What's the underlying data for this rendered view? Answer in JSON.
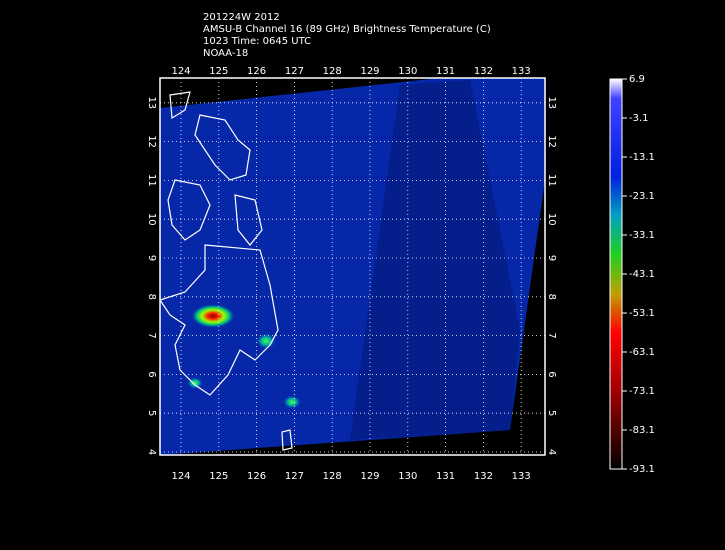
{
  "header": {
    "lines": [
      "201224W 2012",
      "AMSU-B Channel 16 (89 GHz) Brightness Temperature (C)",
      "1023 Time: 0645 UTC",
      "NOAA-18"
    ]
  },
  "map": {
    "x_ticks": [
      124,
      125,
      126,
      127,
      128,
      129,
      130,
      131,
      132,
      133
    ],
    "y_ticks": [
      4,
      5,
      6,
      7,
      8,
      9,
      10,
      11,
      12,
      13
    ]
  },
  "colorbar": {
    "labels": [
      6.9,
      -3.1,
      -13.1,
      -23.1,
      -33.1,
      -43.1,
      -53.1,
      -63.1,
      -73.1,
      -83.1,
      -93.1
    ]
  }
}
